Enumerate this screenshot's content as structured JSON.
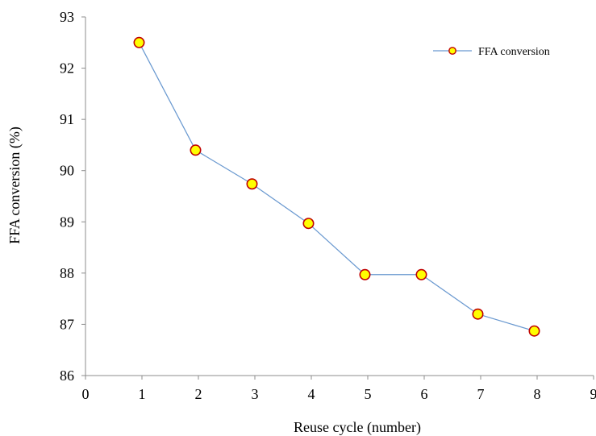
{
  "chart_data": {
    "type": "line",
    "title": "",
    "xlabel": "Reuse cycle (number)",
    "ylabel": "FFA conversion (%)",
    "xlim": [
      0,
      9
    ],
    "ylim": [
      86,
      93
    ],
    "xticks": [
      0,
      1,
      2,
      3,
      4,
      5,
      6,
      7,
      8,
      9
    ],
    "yticks": [
      86,
      87,
      88,
      89,
      90,
      91,
      92,
      93
    ],
    "grid": false,
    "legend": {
      "position": "top-right"
    },
    "series": [
      {
        "name": "FFA conversion",
        "x": [
          0.95,
          1.95,
          2.95,
          3.95,
          4.95,
          5.95,
          6.95,
          7.95
        ],
        "values": [
          92.5,
          90.4,
          89.74,
          88.97,
          87.97,
          87.97,
          87.2,
          86.87
        ],
        "line_color": "#6A99D0",
        "marker_fill": "#FFFF00",
        "marker_edge": "#C00000"
      }
    ]
  }
}
